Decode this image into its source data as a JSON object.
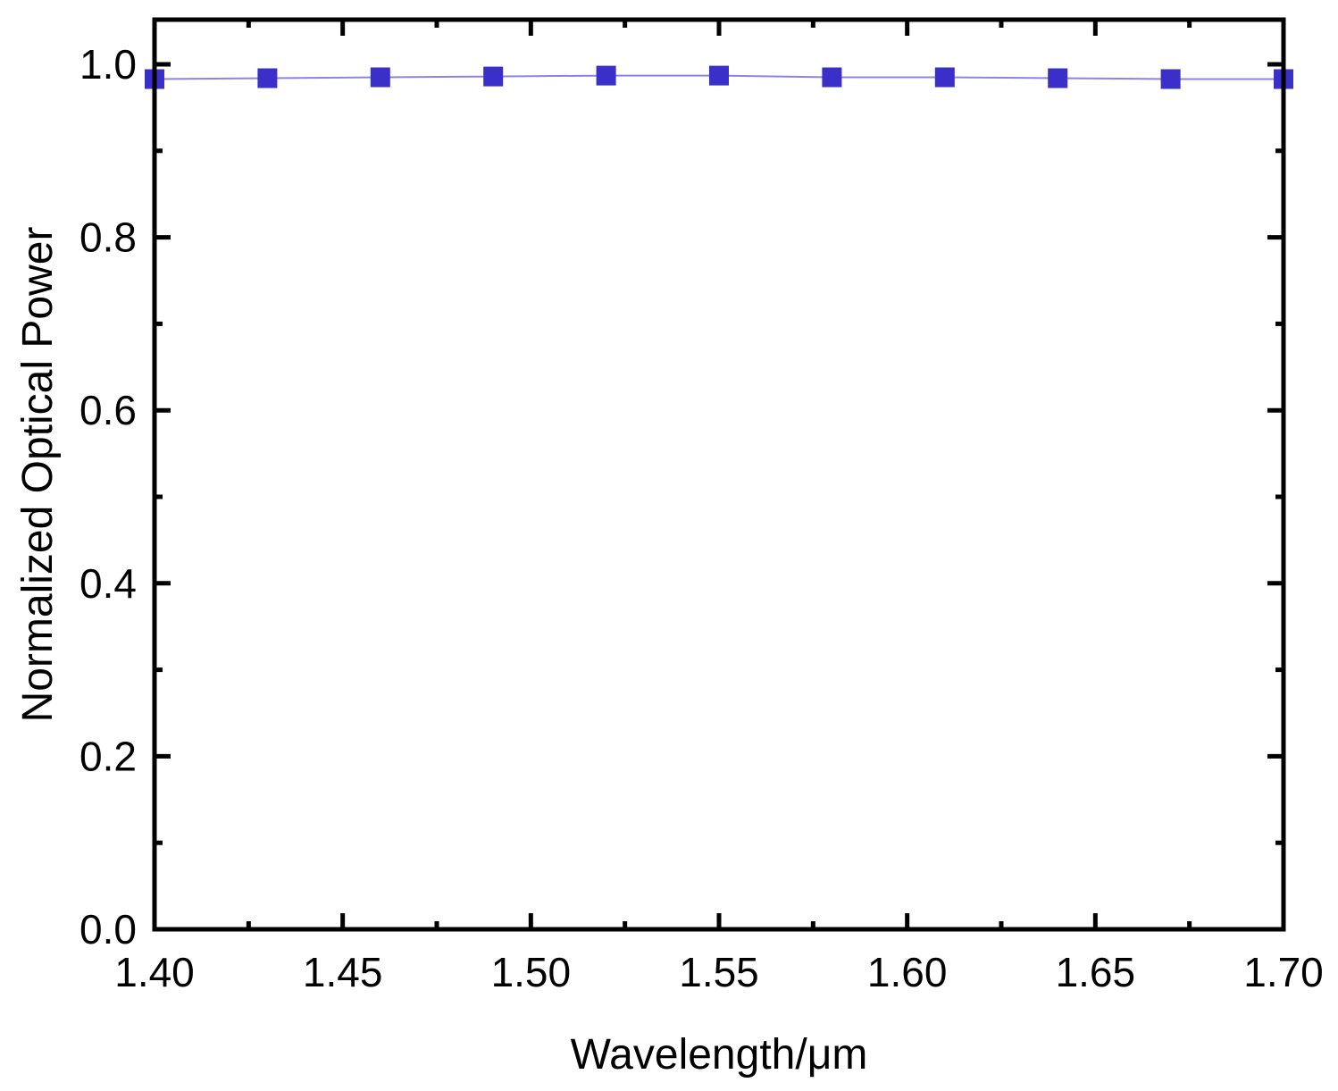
{
  "chart_data": {
    "type": "line",
    "title": "",
    "xlabel": "Wavelength/μm",
    "ylabel": "Normalized Optical Power",
    "xlim": [
      1.4,
      1.7
    ],
    "ylim": [
      0.0,
      1.05
    ],
    "x_ticks": [
      "1.40",
      "1.45",
      "1.50",
      "1.55",
      "1.60",
      "1.65",
      "1.70"
    ],
    "y_ticks": [
      "0.0",
      "0.2",
      "0.4",
      "0.6",
      "0.8",
      "1.0"
    ],
    "grid": false,
    "legend": "none",
    "series": [
      {
        "color": "#3a2fc8",
        "marker": "square",
        "x": [
          1.4,
          1.43,
          1.46,
          1.49,
          1.52,
          1.55,
          1.58,
          1.61,
          1.64,
          1.67,
          1.7
        ],
        "y": [
          0.983,
          0.984,
          0.985,
          0.986,
          0.987,
          0.987,
          0.985,
          0.985,
          0.984,
          0.983,
          0.983
        ]
      }
    ]
  }
}
